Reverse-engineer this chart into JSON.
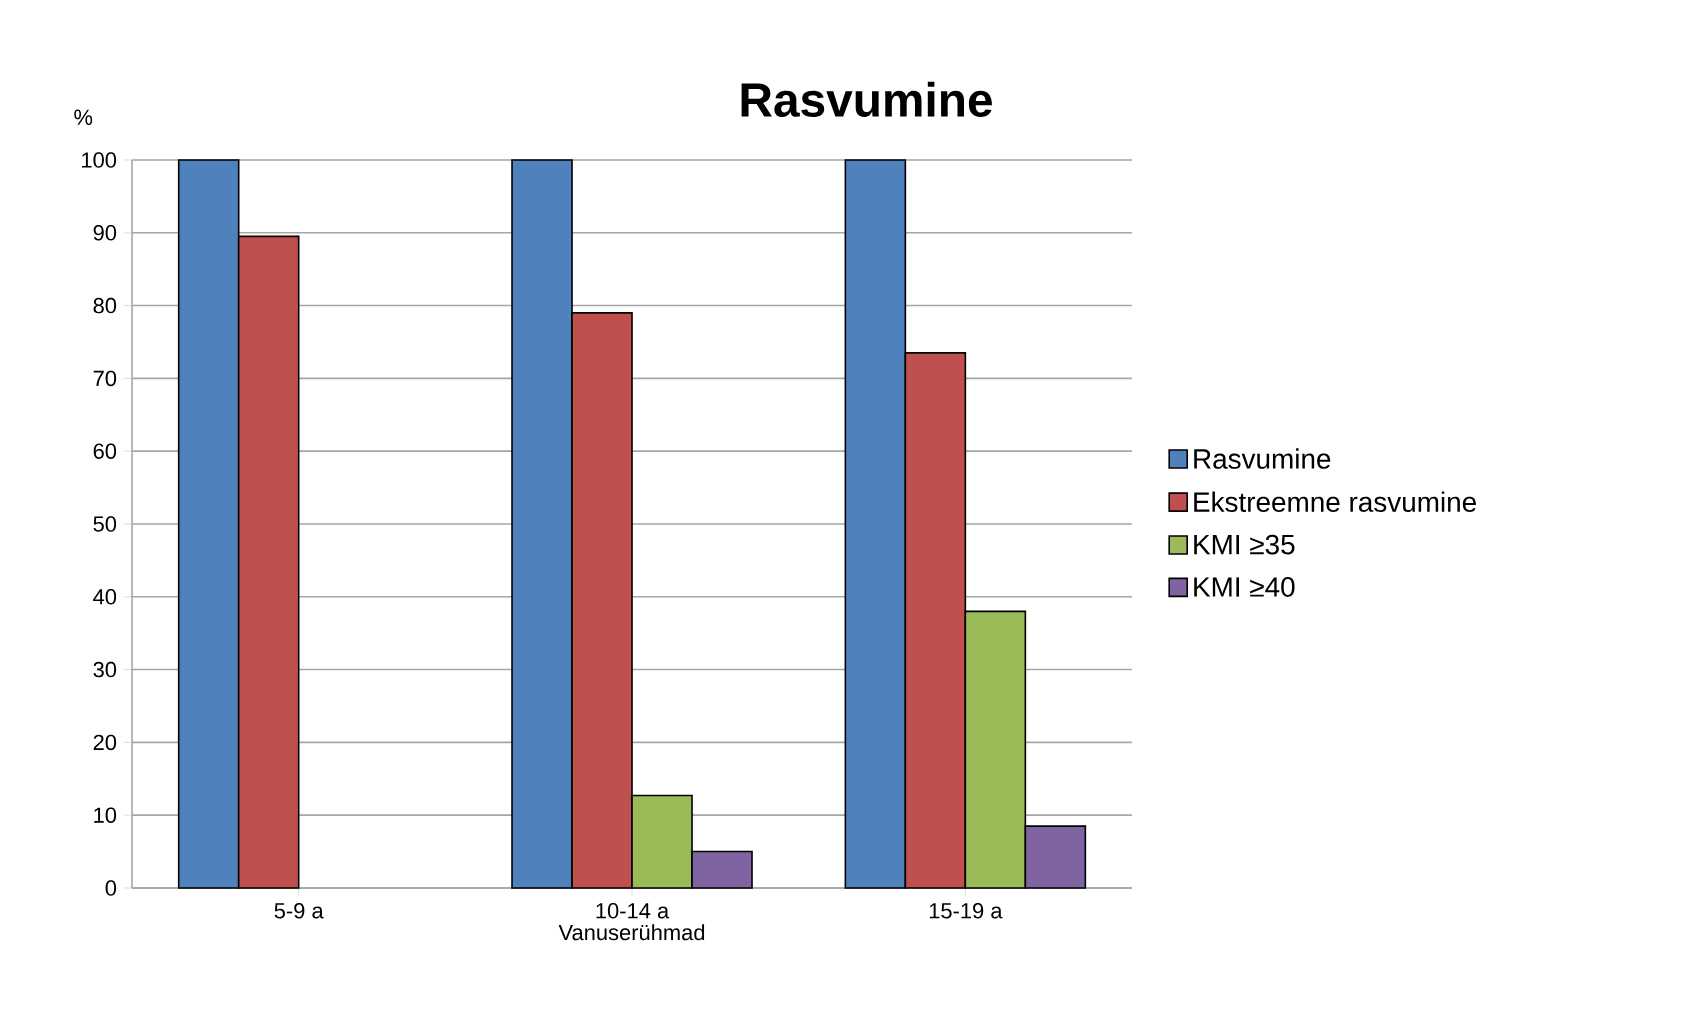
{
  "chart_data": {
    "type": "bar",
    "title": "Rasvumine",
    "xlabel": "Vanuserühmad",
    "ylabel": "%",
    "categories": [
      "5-9 a",
      "10-14 a",
      "15-19 a"
    ],
    "series": [
      {
        "name": "Rasvumine",
        "color": "#4f81bd",
        "values": [
          100,
          100,
          100
        ]
      },
      {
        "name": "Ekstreemne rasvumine",
        "color": "#c0504d",
        "values": [
          89.5,
          79,
          73.5
        ]
      },
      {
        "name": "KMI ≥35",
        "color": "#9bbb59",
        "values": [
          null,
          12.7,
          38
        ]
      },
      {
        "name": "KMI ≥40",
        "color": "#8064a2",
        "values": [
          null,
          5,
          8.5
        ]
      }
    ],
    "ylim": [
      0,
      100
    ],
    "yticks": [
      0,
      10,
      20,
      30,
      40,
      50,
      60,
      70,
      80,
      90,
      100
    ],
    "grid": "y",
    "legend": "right"
  }
}
